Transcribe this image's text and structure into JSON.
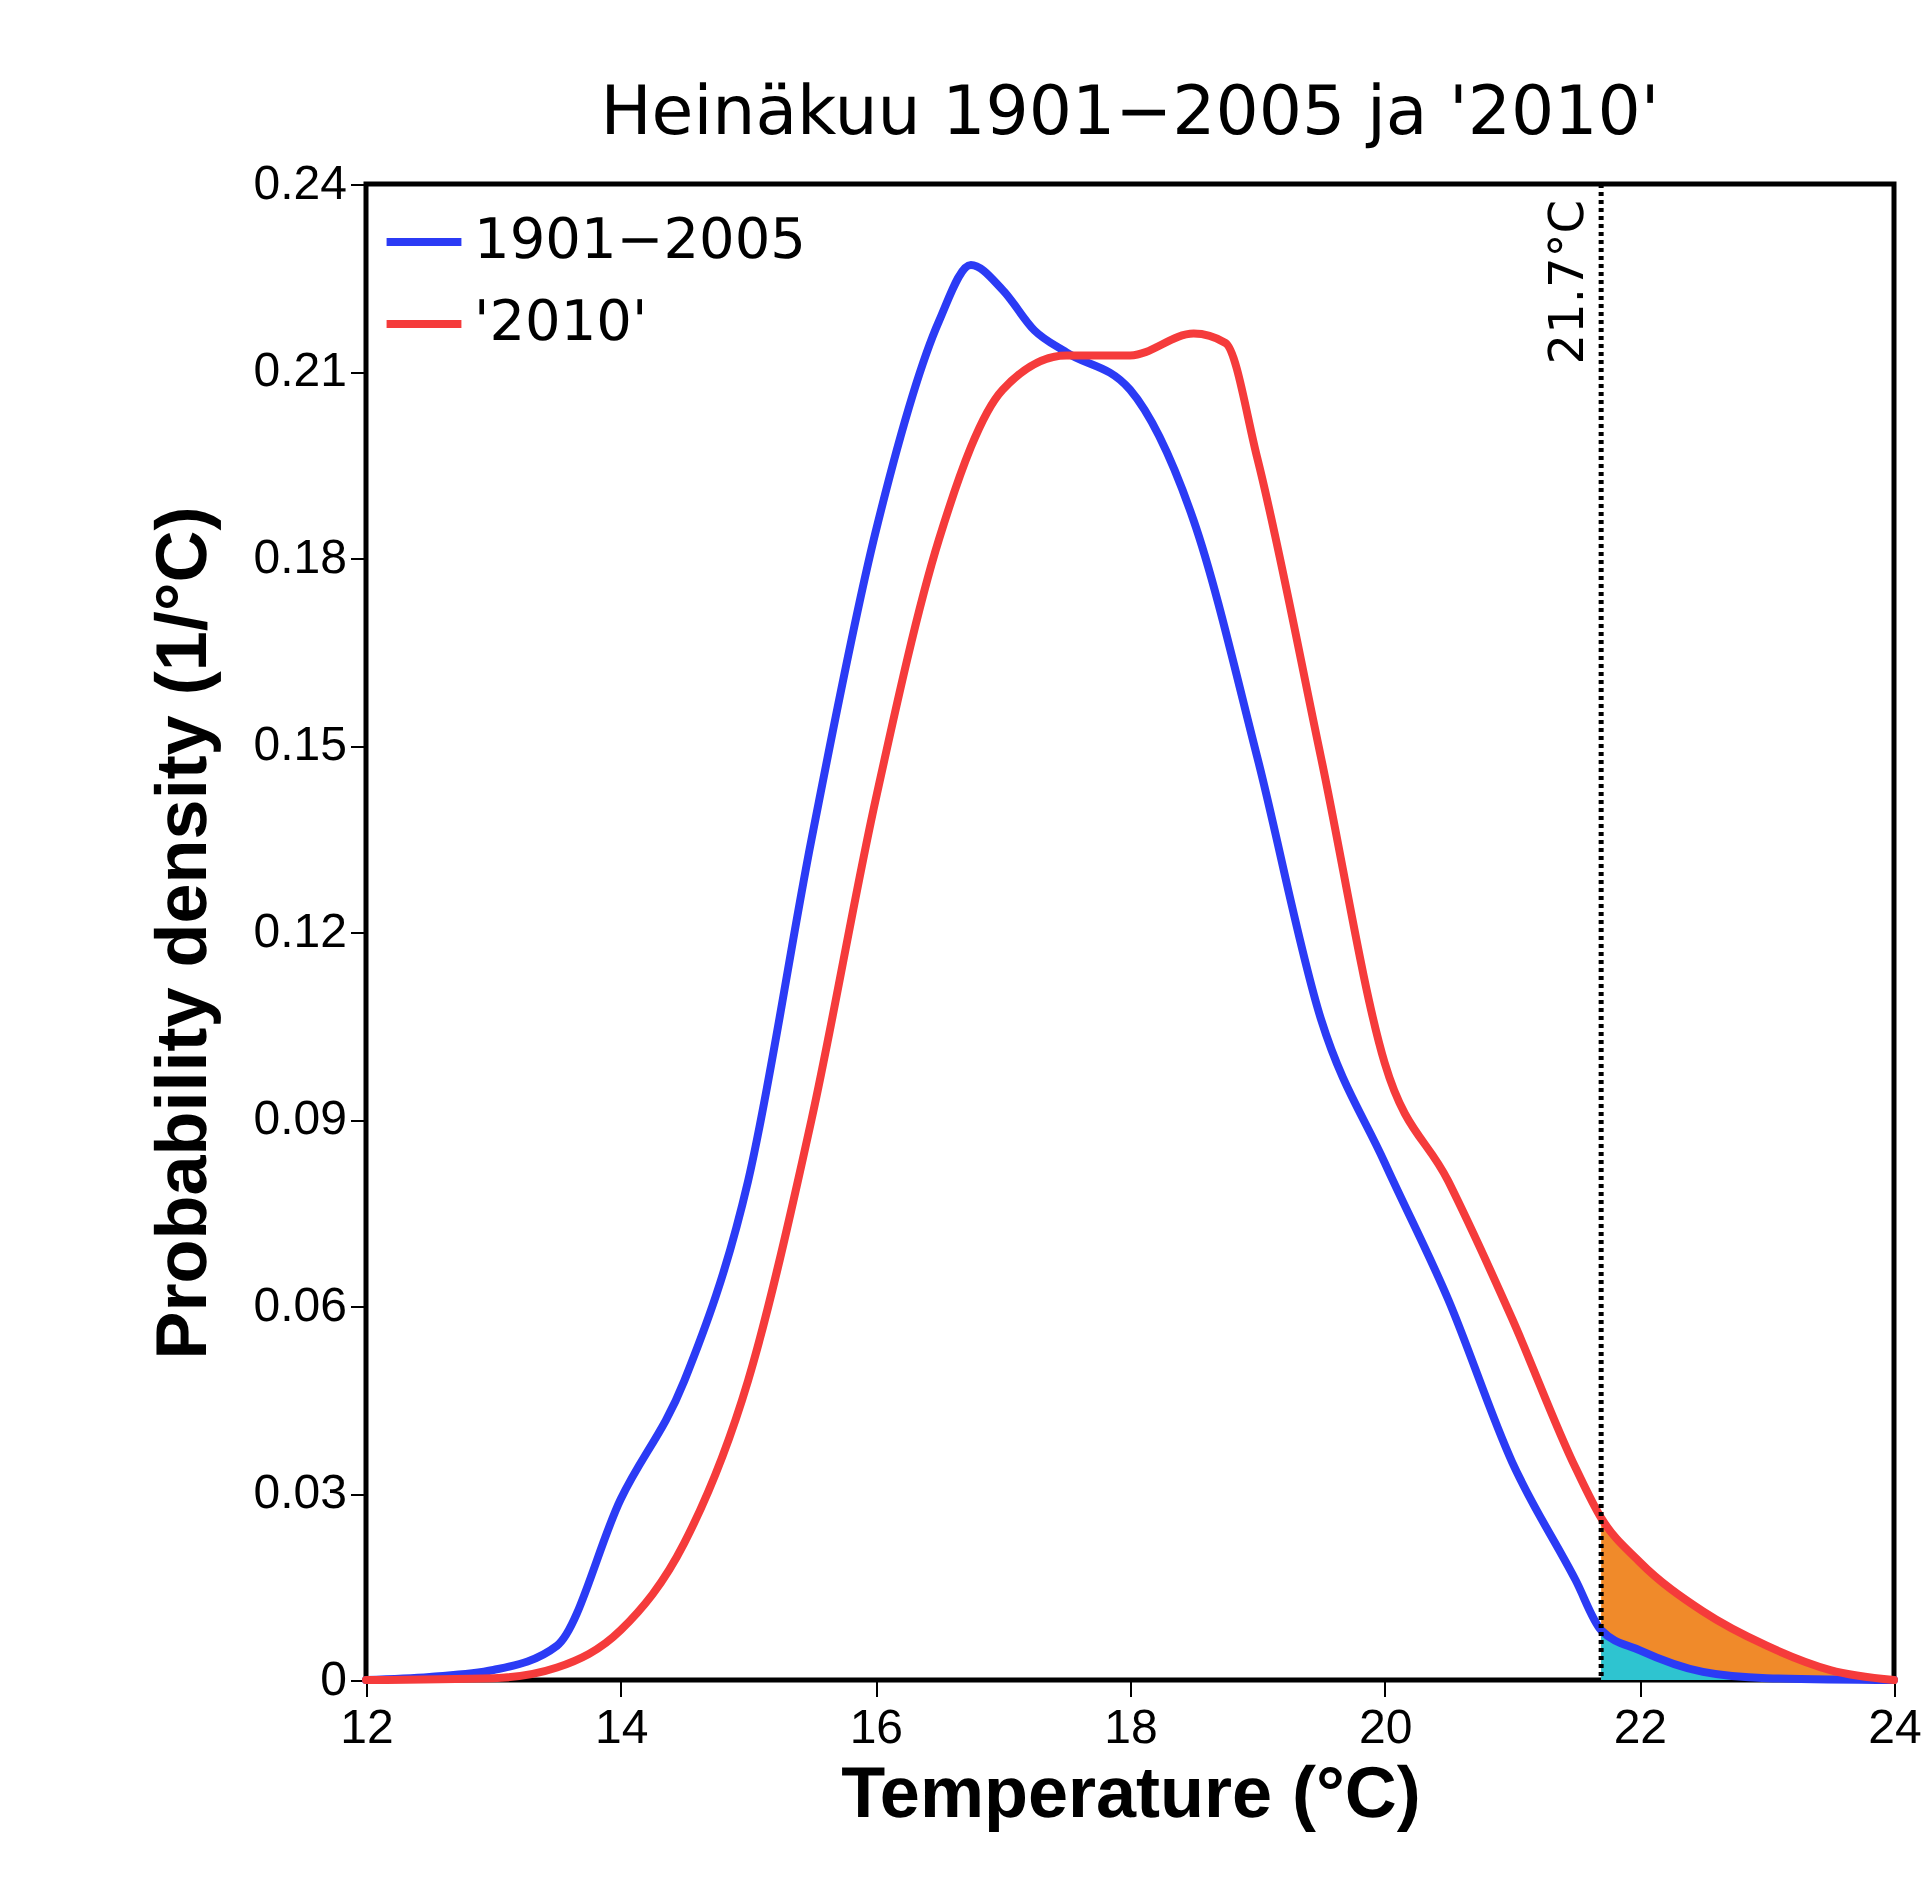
{
  "chart_data": {
    "type": "line",
    "title": "Heinäkuu 1901−2005 ja '2010'",
    "xlabel": "Temperature (°C)",
    "ylabel": "Probability density (1/°C)",
    "xlim": [
      12,
      24
    ],
    "xticks": [
      12,
      14,
      16,
      18,
      20,
      22,
      24
    ],
    "ylim": [
      0,
      0.24
    ],
    "yticks": [
      0,
      0.03,
      0.06,
      0.09,
      0.12,
      0.15,
      0.18,
      0.21,
      0.24
    ],
    "grid": false,
    "legend": "top left",
    "line_style": "solid",
    "marker": "none",
    "series": [
      {
        "type": "area",
        "color": "#f08a2a",
        "x": [
          21.7,
          22,
          22.5,
          23,
          23.5,
          24
        ],
        "values": [
          0.026,
          0.019,
          0.011,
          0.0055,
          0.0016,
          0
        ]
      },
      {
        "type": "area",
        "color": "#2ec4d0",
        "x": [
          21.7,
          22,
          22.5,
          23,
          24
        ],
        "values": [
          0.008,
          0.0048,
          0.0013,
          0.0003,
          0
        ]
      },
      {
        "name": "1901−2005",
        "color": "#2b3bf5",
        "x": [
          12,
          12.5,
          13,
          13.5,
          14,
          14.5,
          15,
          15.5,
          16,
          16.5,
          16.75,
          17,
          17.25,
          17.5,
          18,
          18.5,
          19,
          19.5,
          20,
          20.5,
          21,
          21.5,
          21.7,
          22,
          22.5,
          23,
          24
        ],
        "values": [
          0,
          0.0005,
          0.0016,
          0.0055,
          0.029,
          0.048,
          0.08,
          0.135,
          0.184,
          0.218,
          0.227,
          0.223,
          0.2165,
          0.213,
          0.207,
          0.186,
          0.148,
          0.106,
          0.083,
          0.061,
          0.035,
          0.016,
          0.008,
          0.0048,
          0.0013,
          0.0003,
          0
        ]
      },
      {
        "name": "'2010'",
        "color": "#f53b3b",
        "x": [
          12,
          13,
          13.5,
          14,
          14.5,
          15,
          15.5,
          16,
          16.5,
          17,
          17.5,
          18,
          18.5,
          18.75,
          19,
          19.5,
          20,
          20.5,
          21,
          21.5,
          21.7,
          22,
          22.5,
          23,
          23.5,
          24
        ],
        "values": [
          0,
          0.0003,
          0.002,
          0.008,
          0.022,
          0.048,
          0.09,
          0.141,
          0.183,
          0.207,
          0.2125,
          0.2125,
          0.216,
          0.2145,
          0.196,
          0.148,
          0.099,
          0.08,
          0.058,
          0.034,
          0.026,
          0.019,
          0.011,
          0.0055,
          0.0016,
          0
        ]
      }
    ],
    "ref_lines": [
      {
        "axis": "x",
        "value": 21.7,
        "label": "21.7°C",
        "color": "#000000",
        "line_style": "dotted"
      }
    ]
  }
}
